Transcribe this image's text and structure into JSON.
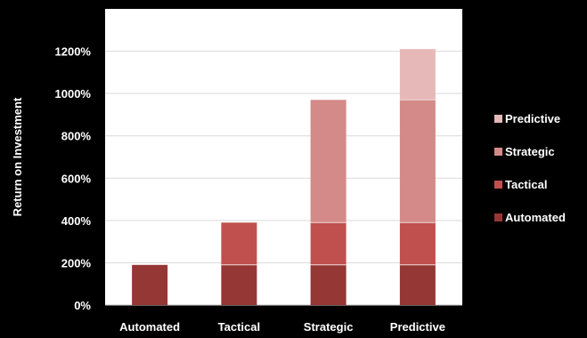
{
  "chart_data": {
    "type": "bar",
    "stacked": true,
    "categories": [
      "Automated",
      "Tactical",
      "Strategic",
      "Predictive"
    ],
    "series": [
      {
        "name": "Automated",
        "color": "#953735",
        "values": [
          190,
          190,
          190,
          190
        ]
      },
      {
        "name": "Tactical",
        "color": "#c0504d",
        "values": [
          0,
          200,
          200,
          200
        ]
      },
      {
        "name": "Strategic",
        "color": "#d48a88",
        "values": [
          0,
          0,
          580,
          580
        ]
      },
      {
        "name": "Predictive",
        "color": "#e6b9b8",
        "values": [
          0,
          0,
          0,
          240
        ]
      }
    ],
    "ylabel": "Return on Investment",
    "yticks": [
      "0%",
      "200%",
      "400%",
      "600%",
      "800%",
      "1000%",
      "1200%"
    ],
    "ylim": [
      0,
      1400
    ],
    "grid": true,
    "legend_position": "right",
    "legend_order": [
      "Predictive",
      "Strategic",
      "Tactical",
      "Automated"
    ],
    "plot_background": "#ffffff",
    "page_background": "#000000",
    "text_color": "#ffffff",
    "gridline_color": "#d9d9d9"
  }
}
